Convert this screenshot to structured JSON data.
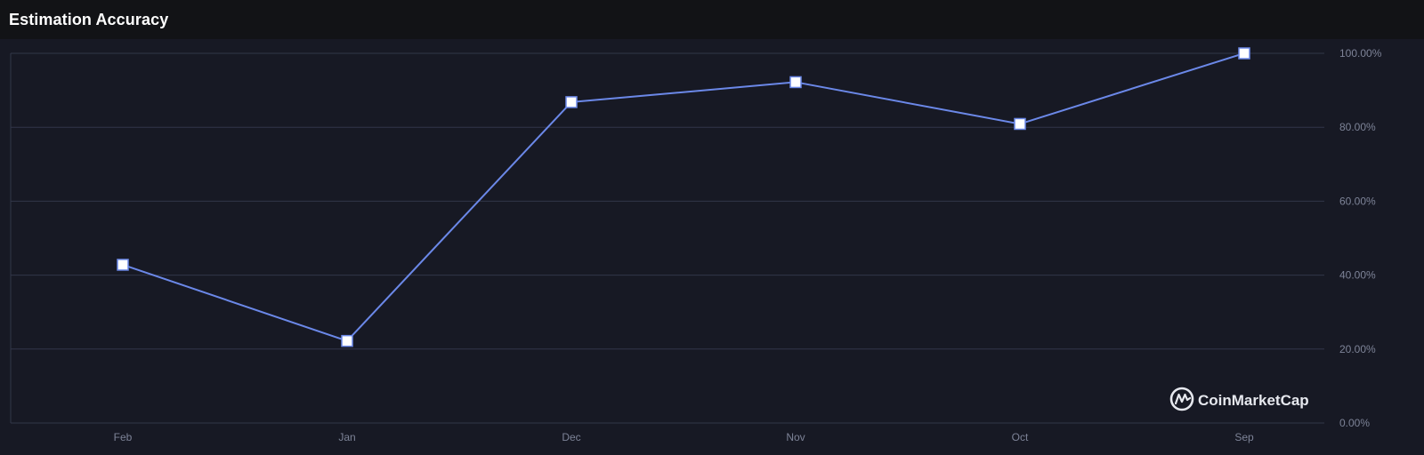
{
  "header": {
    "title": "Estimation Accuracy"
  },
  "watermark": {
    "text": "CoinMarketCap",
    "icon": "coinmarketcap-logo-icon"
  },
  "colors": {
    "background": "#171924",
    "header_background": "#121316",
    "line": "#6b88e8",
    "marker_fill": "#ffffff",
    "grid": "#323649",
    "tick_text": "#7d8397"
  },
  "chart_data": {
    "type": "line",
    "title": "Estimation Accuracy",
    "categories": [
      "Feb",
      "Jan",
      "Dec",
      "Nov",
      "Oct",
      "Sep"
    ],
    "series": [
      {
        "values": [
          42.8,
          22.2,
          86.8,
          92.2,
          80.9,
          100.0
        ]
      }
    ],
    "y_ticks": [
      "0.00%",
      "20.00%",
      "40.00%",
      "60.00%",
      "80.00%",
      "100.00%"
    ],
    "ylim": [
      0,
      100
    ],
    "y_axis_position": "right",
    "grid": true,
    "legend": "none"
  }
}
